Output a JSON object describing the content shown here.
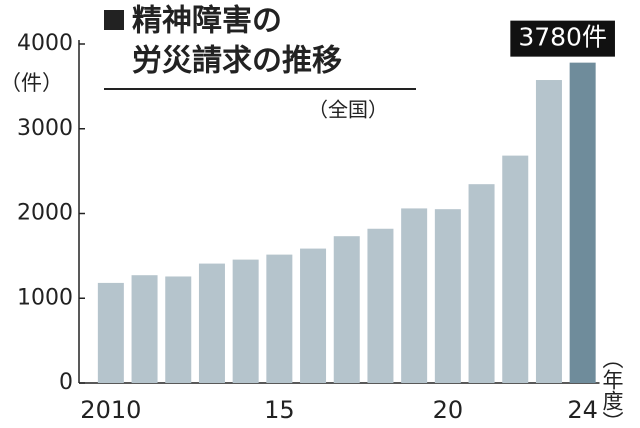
{
  "chart_data": {
    "type": "bar",
    "title": [
      "精神障害の",
      "労災請求の推移"
    ],
    "subtitle": "（全国）",
    "y_label": "（件）",
    "x_label": "（年度）",
    "categories": [
      "2010",
      null,
      null,
      null,
      null,
      "15",
      null,
      null,
      null,
      null,
      "20",
      null,
      null,
      null,
      "24"
    ],
    "values": [
      1181,
      1272,
      1257,
      1409,
      1456,
      1515,
      1586,
      1732,
      1820,
      2060,
      2051,
      2346,
      2683,
      3575,
      3780
    ],
    "value_labels": [
      null,
      null,
      null,
      null,
      null,
      null,
      null,
      null,
      null,
      null,
      null,
      null,
      null,
      null,
      "3780件"
    ],
    "color": "#b5c4cc",
    "highlight_color": "#6f8c9b",
    "ylim": [
      0,
      4000
    ],
    "yticks": [
      0,
      1000,
      2000,
      3000,
      4000
    ],
    "grid": false
  }
}
